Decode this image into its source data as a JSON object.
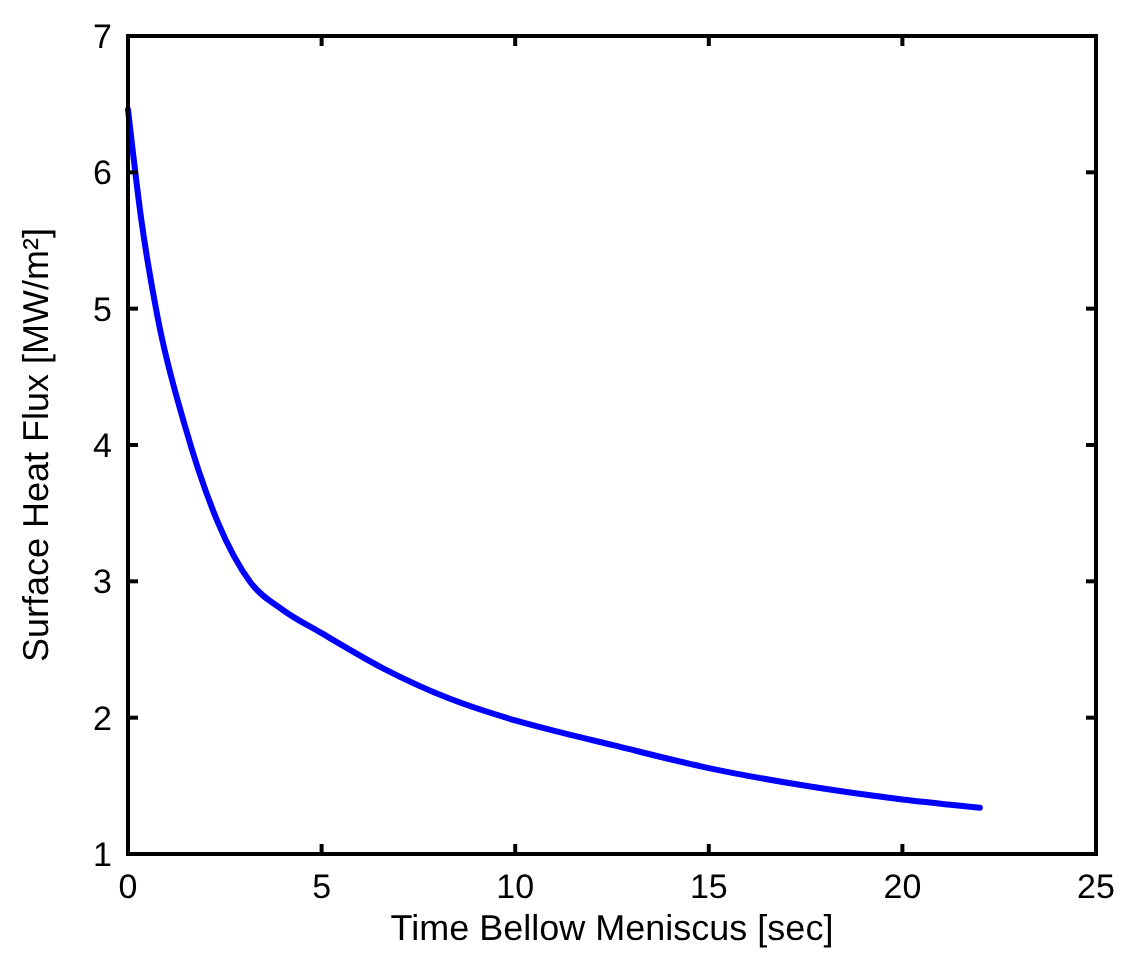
{
  "chart_data": {
    "type": "line",
    "xlabel": "Time Bellow Meniscus [sec]",
    "ylabel": "Surface Heat Flux [MW/m²]",
    "x": [
      0,
      0.34,
      0.77,
      1.46,
      2.31,
      3.17,
      4,
      5,
      6.6,
      8.3,
      10,
      11.2,
      12.5,
      15,
      17.5,
      20,
      22
    ],
    "series": [
      {
        "color": "#0000ff",
        "values": [
          6.46,
          5.66,
          4.93,
          4.15,
          3.44,
          2.99,
          2.79,
          2.62,
          2.36,
          2.14,
          1.98,
          1.89,
          1.8,
          1.63,
          1.5,
          1.4,
          1.34
        ]
      }
    ],
    "xlim": [
      0,
      25
    ],
    "xticks": [
      0,
      5,
      10,
      15,
      20,
      25
    ],
    "ylim": [
      1,
      7
    ],
    "yticks": [
      1,
      2,
      3,
      4,
      5,
      6,
      7
    ],
    "grid": false,
    "marker": "none",
    "line_style": "solid"
  }
}
